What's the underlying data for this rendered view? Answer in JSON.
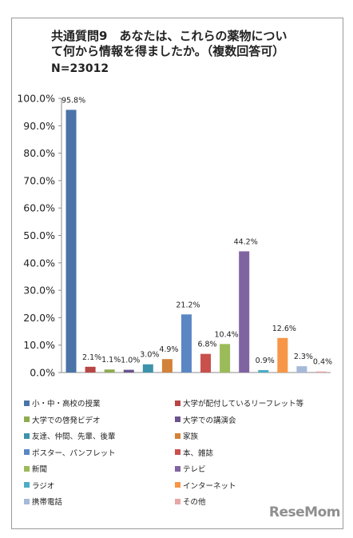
{
  "title_line1": "共通質問9　あなたは、これらの薬物につい",
  "title_line2": "て何から情報を得ましたか。（複数回答可）",
  "sample_size": "N=23012",
  "logo": "ReseMom",
  "chart_data": {
    "type": "bar",
    "title": "共通質問9　あなたは、これらの薬物について何から情報を得ましたか。（複数回答可）",
    "subtitle": "N=23012",
    "xlabel": "",
    "ylabel": "",
    "ylim": [
      0,
      100
    ],
    "yticks": [
      "0.0%",
      "10.0%",
      "20.0%",
      "30.0%",
      "40.0%",
      "50.0%",
      "60.0%",
      "70.0%",
      "80.0%",
      "90.0%",
      "100.0%"
    ],
    "grid": false,
    "legend_position": "bottom",
    "categories": [
      "小・中・高校の授業",
      "大学が配付しているリーフレット等",
      "大学での啓発ビデオ",
      "大学での講演会",
      "友達、仲間、先輩、後輩",
      "家族",
      "ポスター、パンフレット",
      "本、雑誌",
      "新聞",
      "テレビ",
      "ラジオ",
      "インターネット",
      "携帯電話",
      "その他"
    ],
    "values": [
      95.8,
      2.1,
      1.1,
      1.0,
      3.0,
      4.9,
      21.2,
      6.8,
      10.4,
      44.2,
      0.9,
      12.6,
      2.3,
      0.4
    ],
    "value_labels": [
      "95.8%",
      "2.1%",
      "1.1%",
      "1.0%",
      "3.0%",
      "4.9%",
      "21.2%",
      "6.8%",
      "10.4%",
      "44.2%",
      "0.9%",
      "12.6%",
      "2.3%",
      "0.4%"
    ],
    "colors": [
      "#4a74a8",
      "#b84644",
      "#8fac4e",
      "#6a548c",
      "#3c93ab",
      "#d2823a",
      "#5a86c4",
      "#c9504d",
      "#9bbb59",
      "#8064a2",
      "#4bacc6",
      "#f79646",
      "#a5b9d9",
      "#e6a7a5"
    ]
  }
}
